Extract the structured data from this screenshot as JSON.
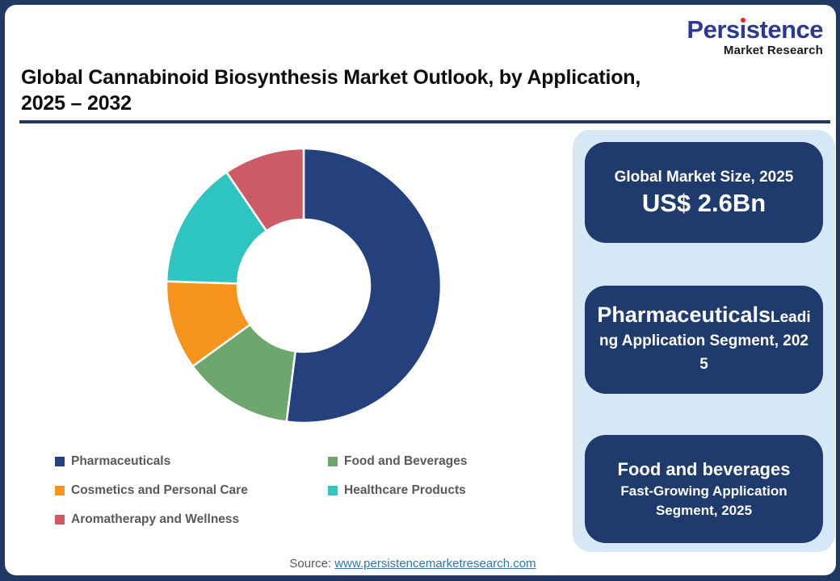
{
  "logo": {
    "full_name": "Persistence Market Research",
    "part1": "Pers",
    "dotless_i": "ı",
    "part2": "stence",
    "subtitle": "Market Research",
    "brand_color": "#2B3990",
    "dot_color": "#E8262D"
  },
  "header": {
    "title_line1": "Global Cannabinoid Biosynthesis Market Outlook, by Application,",
    "title_line2": "2025 – 2032"
  },
  "chart_data": {
    "type": "pie",
    "subtype": "donut",
    "title": "Global Cannabinoid Biosynthesis Market Outlook, by Application, 2025 – 2032",
    "direction": "clockwise",
    "start_angle_deg": 0,
    "inner_radius_ratio": 0.48,
    "legend_position": "bottom",
    "values_are": "percent_share_estimated_from_arc_angles",
    "segments": [
      {
        "label": "Pharmaceuticals",
        "value": 52,
        "color": "#24417E"
      },
      {
        "label": "Food and Beverages",
        "value": 13,
        "color": "#6EA76E"
      },
      {
        "label": "Cosmetics and Personal Care",
        "value": 10.5,
        "color": "#F6941D"
      },
      {
        "label": "Healthcare Products",
        "value": 15,
        "color": "#2EC4C0"
      },
      {
        "label": "Aromatherapy and Wellness",
        "value": 9.5,
        "color": "#CD5B66"
      }
    ]
  },
  "legend": {
    "columns": [
      [
        0,
        2,
        4
      ],
      [
        1,
        3
      ]
    ]
  },
  "panel": {
    "background": "#D6E8F6",
    "card_background": "#1F3A6C",
    "cards": [
      {
        "title": "Global Market Size, 2025",
        "value": "US$ 2.6Bn"
      },
      {
        "heading": "Pharmaceuticals",
        "subtitle": "Leading Application Segment, 2025"
      },
      {
        "heading": "Food and beverages",
        "subtitle": "Fast-Growing Application Segment, 2025"
      }
    ]
  },
  "footer": {
    "source_label": "Source:",
    "source_url": "www.persistencemarketresearch.com"
  }
}
